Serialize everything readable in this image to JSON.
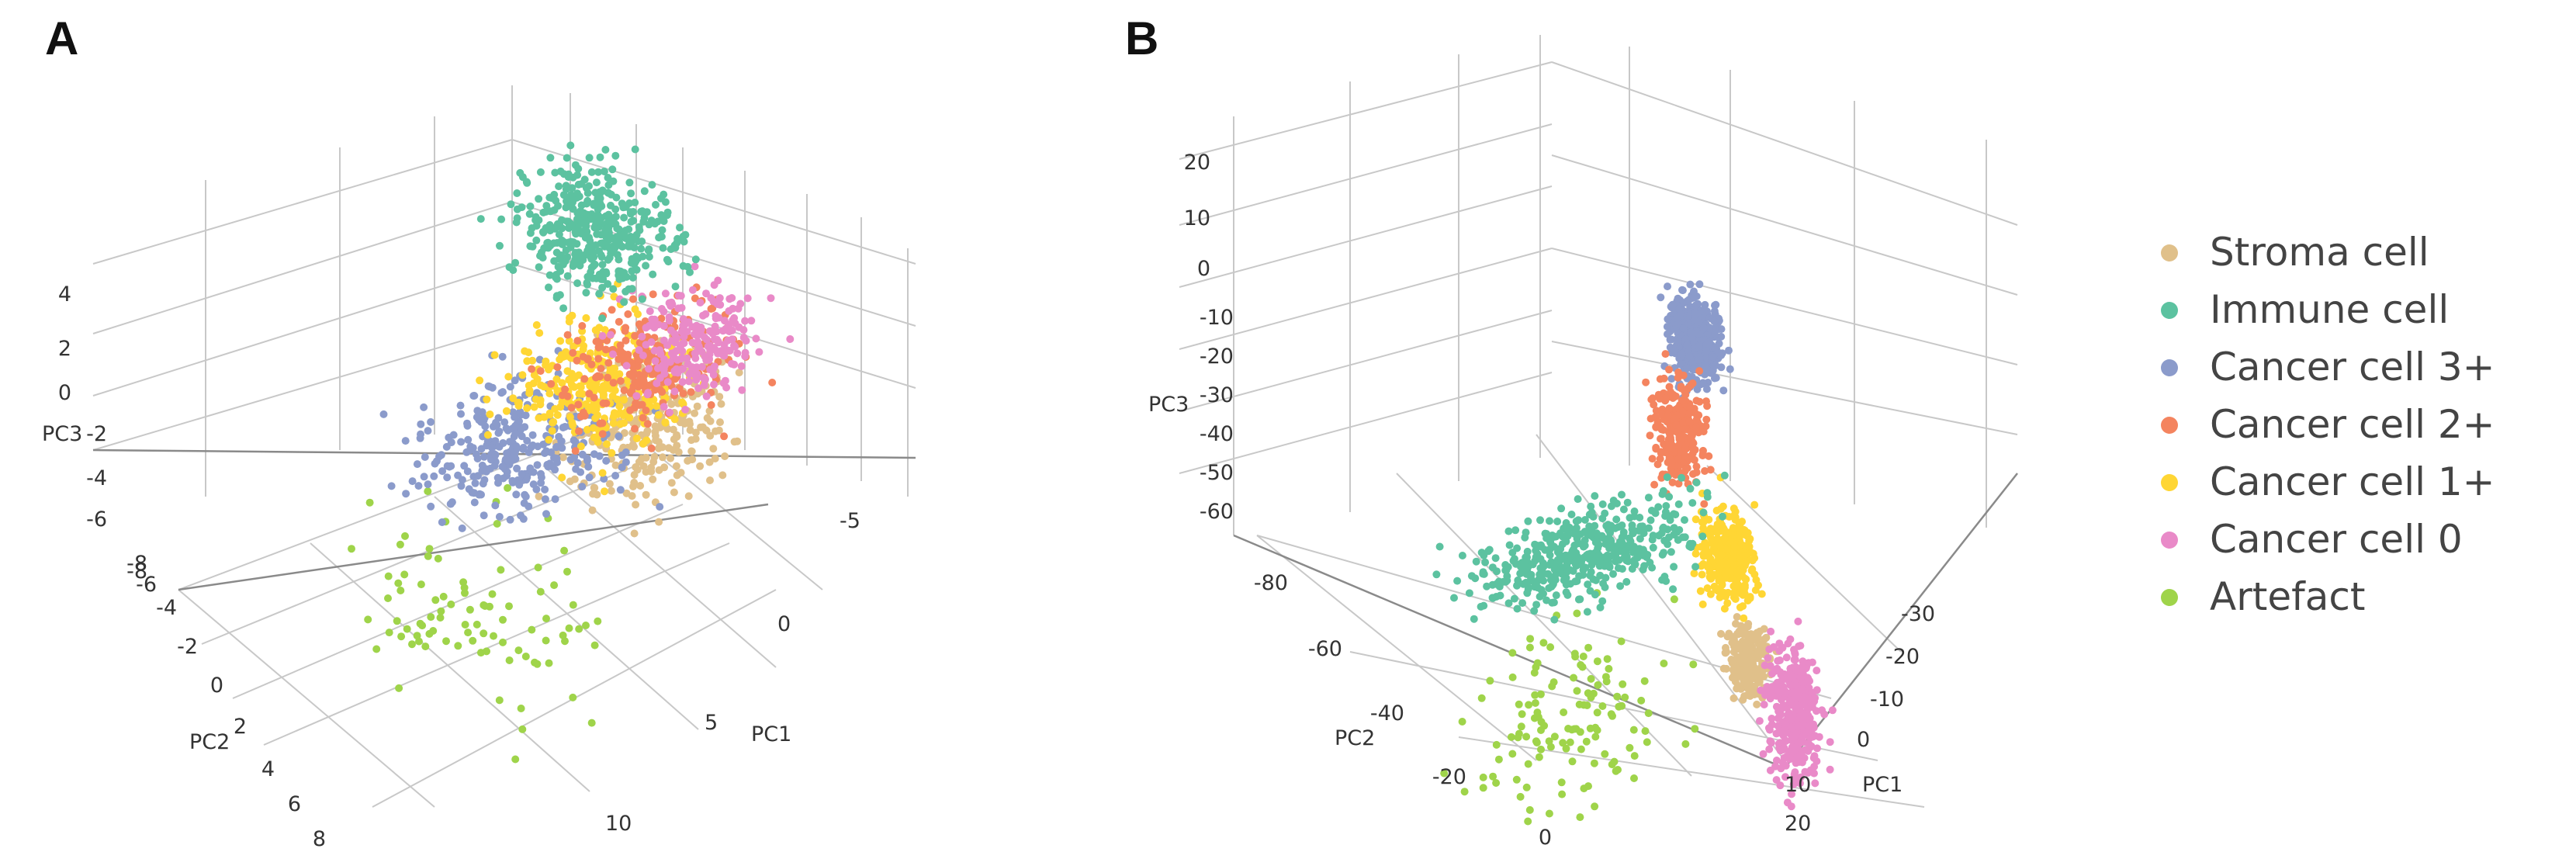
{
  "panels": {
    "a": {
      "letter": "A"
    },
    "b": {
      "letter": "B"
    }
  },
  "legend": {
    "items": [
      {
        "label": "Stroma cell",
        "color": "#e0c08a"
      },
      {
        "label": "Immune cell",
        "color": "#5cc2a0"
      },
      {
        "label": "Cancer cell 3+",
        "color": "#8b9bcb"
      },
      {
        "label": "Cancer cell 2+",
        "color": "#f4845f"
      },
      {
        "label": "Cancer cell 1+",
        "color": "#ffd634"
      },
      {
        "label": "Cancer cell 0",
        "color": "#e98ac8"
      },
      {
        "label": "Artefact",
        "color": "#9fd44a"
      }
    ]
  },
  "chart_data": [
    {
      "type": "scatter",
      "subtype": "3d-pca",
      "panel": "A",
      "title": "",
      "axes": {
        "x": {
          "label": "PC1",
          "ticks": [
            "-5",
            "0",
            "5",
            "10"
          ]
        },
        "y": {
          "label": "PC2",
          "ticks": [
            "-8",
            "-6",
            "-4",
            "-2",
            "0",
            "2",
            "4",
            "6",
            "8"
          ]
        },
        "z": {
          "label": "PC3",
          "ticks": [
            "4",
            "2",
            "0",
            "-2",
            "-4",
            "-6",
            "-8"
          ]
        }
      },
      "series": [
        {
          "name": "Stroma cell",
          "cluster": {
            "pc1": [
              1.5,
              5
            ],
            "pc2": [
              -2,
              3
            ],
            "pc3": [
              -3,
              3
            ]
          }
        },
        {
          "name": "Immune cell",
          "cluster": {
            "pc1": [
              -4,
              1
            ],
            "pc2": [
              -4,
              0
            ],
            "pc3": [
              1,
              5
            ]
          }
        },
        {
          "name": "Cancer cell 3+",
          "cluster": {
            "pc1": [
              -2,
              3
            ],
            "pc2": [
              -1,
              5
            ],
            "pc3": [
              -4,
              1
            ]
          }
        },
        {
          "name": "Cancer cell 2+",
          "cluster": {
            "pc1": [
              0,
              4
            ],
            "pc2": [
              -3,
              2
            ],
            "pc3": [
              -1,
              3
            ]
          }
        },
        {
          "name": "Cancer cell 1+",
          "cluster": {
            "pc1": [
              -1,
              4
            ],
            "pc2": [
              -2,
              3
            ],
            "pc3": [
              -2,
              3
            ]
          }
        },
        {
          "name": "Cancer cell 0",
          "cluster": {
            "pc1": [
              1,
              5
            ],
            "pc2": [
              -3,
              1
            ],
            "pc3": [
              0,
              4
            ]
          }
        },
        {
          "name": "Artefact",
          "cluster": {
            "pc1": [
              -3,
              7
            ],
            "pc2": [
              2,
              8
            ],
            "pc3": [
              -8,
              -2
            ]
          }
        }
      ]
    },
    {
      "type": "scatter",
      "subtype": "3d-pca",
      "panel": "B",
      "title": "",
      "axes": {
        "x": {
          "label": "PC1",
          "ticks": [
            "-30",
            "-20",
            "-10",
            "0",
            "10",
            "20"
          ]
        },
        "y": {
          "label": "PC2",
          "ticks": [
            "-80",
            "-60",
            "-40",
            "-20",
            "0"
          ]
        },
        "z": {
          "label": "PC3",
          "ticks": [
            "20",
            "10",
            "0",
            "-10",
            "-20",
            "-30",
            "-40",
            "-50",
            "-60"
          ]
        }
      },
      "series": [
        {
          "name": "Stroma cell",
          "cluster": {
            "pc1": [
              0,
              10
            ],
            "pc2": [
              -10,
              0
            ],
            "pc3": [
              -45,
              -30
            ]
          }
        },
        {
          "name": "Immune cell",
          "cluster": {
            "pc1": [
              -10,
              5
            ],
            "pc2": [
              -70,
              -5
            ],
            "pc3": [
              -25,
              -5
            ]
          }
        },
        {
          "name": "Cancer cell 3+",
          "cluster": {
            "pc1": [
              -25,
              -10
            ],
            "pc2": [
              -5,
              5
            ],
            "pc3": [
              0,
              20
            ]
          }
        },
        {
          "name": "Cancer cell 2+",
          "cluster": {
            "pc1": [
              -30,
              -15
            ],
            "pc2": [
              -5,
              5
            ],
            "pc3": [
              -20,
              5
            ]
          }
        },
        {
          "name": "Cancer cell 1+",
          "cluster": {
            "pc1": [
              -15,
              0
            ],
            "pc2": [
              -5,
              5
            ],
            "pc3": [
              -35,
              -15
            ]
          }
        },
        {
          "name": "Cancer cell 0",
          "cluster": {
            "pc1": [
              5,
              20
            ],
            "pc2": [
              -5,
              5
            ],
            "pc3": [
              -60,
              -30
            ]
          }
        },
        {
          "name": "Artefact",
          "cluster": {
            "pc1": [
              0,
              15
            ],
            "pc2": [
              -80,
              -20
            ],
            "pc3": [
              -60,
              -20
            ]
          }
        }
      ]
    }
  ]
}
